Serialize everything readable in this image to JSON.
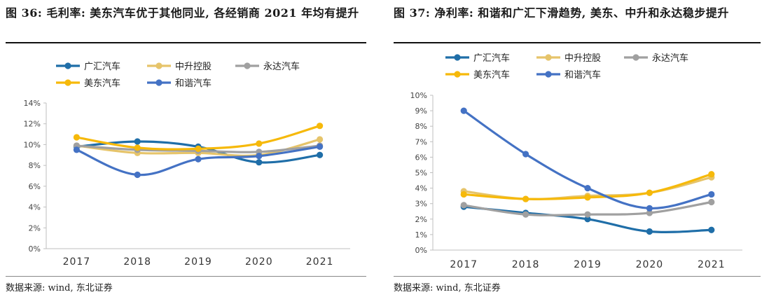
{
  "chart_data": [
    {
      "type": "line",
      "title": "图 36: 毛利率: 美东汽车优于其他同业, 各经销商 2021 年均有提升",
      "categories": [
        "2017",
        "2018",
        "2019",
        "2020",
        "2021"
      ],
      "ylim": [
        0,
        14
      ],
      "yticks": [
        "0%",
        "2%",
        "4%",
        "6%",
        "8%",
        "10%",
        "12%",
        "14%"
      ],
      "ytick_values": [
        0,
        2,
        4,
        6,
        8,
        10,
        12,
        14
      ],
      "series": [
        {
          "name": "广汇汽车",
          "color": "#1f6ea8",
          "values": [
            9.8,
            10.3,
            9.8,
            8.3,
            9.0
          ]
        },
        {
          "name": "中升控股",
          "color": "#e6c46a",
          "values": [
            9.9,
            9.2,
            9.2,
            9.0,
            10.5
          ]
        },
        {
          "name": "永达汽车",
          "color": "#a0a0a0",
          "values": [
            9.9,
            9.5,
            9.4,
            9.3,
            9.9
          ]
        },
        {
          "name": "美东汽车",
          "color": "#f6b90a",
          "values": [
            10.7,
            9.7,
            9.6,
            10.1,
            11.8
          ]
        },
        {
          "name": "和谐汽车",
          "color": "#4472c4",
          "values": [
            9.5,
            7.1,
            8.6,
            8.9,
            9.8
          ]
        }
      ],
      "source": "数据来源: wind, 东北证券"
    },
    {
      "type": "line",
      "title": "图 37: 净利率: 和谐和广汇下滑趋势, 美东、中升和永达稳步提升",
      "categories": [
        "2017",
        "2018",
        "2019",
        "2020",
        "2021"
      ],
      "ylim": [
        0,
        10
      ],
      "yticks": [
        "0%",
        "1%",
        "2%",
        "3%",
        "4%",
        "5%",
        "6%",
        "7%",
        "8%",
        "9%",
        "10%"
      ],
      "ytick_values": [
        0,
        1,
        2,
        3,
        4,
        5,
        6,
        7,
        8,
        9,
        10
      ],
      "series": [
        {
          "name": "广汇汽车",
          "color": "#1f6ea8",
          "values": [
            2.8,
            2.4,
            2.0,
            1.2,
            1.3
          ]
        },
        {
          "name": "中升控股",
          "color": "#e6c46a",
          "values": [
            3.8,
            3.3,
            3.5,
            3.7,
            4.7
          ]
        },
        {
          "name": "永达汽车",
          "color": "#a0a0a0",
          "values": [
            2.9,
            2.3,
            2.3,
            2.4,
            3.1
          ]
        },
        {
          "name": "美东汽车",
          "color": "#f6b90a",
          "values": [
            3.6,
            3.3,
            3.4,
            3.7,
            4.9
          ]
        },
        {
          "name": "和谐汽车",
          "color": "#4472c4",
          "values": [
            9.0,
            6.2,
            4.0,
            2.7,
            3.6
          ]
        }
      ],
      "source": "数据来源: wind, 东北证券"
    }
  ]
}
